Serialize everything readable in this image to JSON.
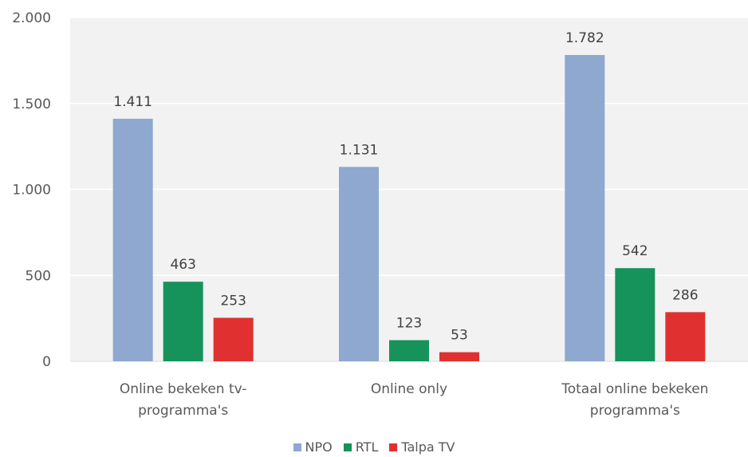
{
  "chart_data": {
    "type": "bar",
    "categories": [
      [
        "Online bekeken tv-",
        "programma's"
      ],
      [
        "Online only"
      ],
      [
        "Totaal online bekeken",
        "programma's"
      ]
    ],
    "series": [
      {
        "name": "NPO",
        "color": "#8EA8CF",
        "values": [
          1411,
          1131,
          1782
        ],
        "labels": [
          "1.411",
          "1.131",
          "1.782"
        ]
      },
      {
        "name": "RTL",
        "color": "#15935A",
        "values": [
          463,
          123,
          542
        ],
        "labels": [
          "463",
          "123",
          "542"
        ]
      },
      {
        "name": "Talpa TV",
        "color": "#E03030",
        "values": [
          253,
          53,
          286
        ],
        "labels": [
          "253",
          "53",
          "286"
        ]
      }
    ],
    "ylim": [
      0,
      2000
    ],
    "yticks": [
      0,
      500,
      1000,
      1500,
      2000
    ],
    "ytick_labels": [
      "0",
      "500",
      "1.000",
      "1.500",
      "2.000"
    ],
    "grid": true,
    "legend_position": "bottom"
  }
}
